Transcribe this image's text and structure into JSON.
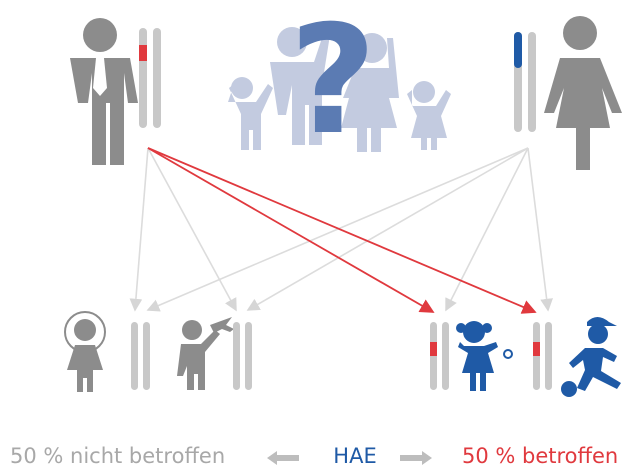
{
  "diagram": {
    "question_mark": "?"
  },
  "legend": {
    "left": "50 % nicht betroffen",
    "center": "HAE",
    "right": "50 % betroffen"
  }
}
